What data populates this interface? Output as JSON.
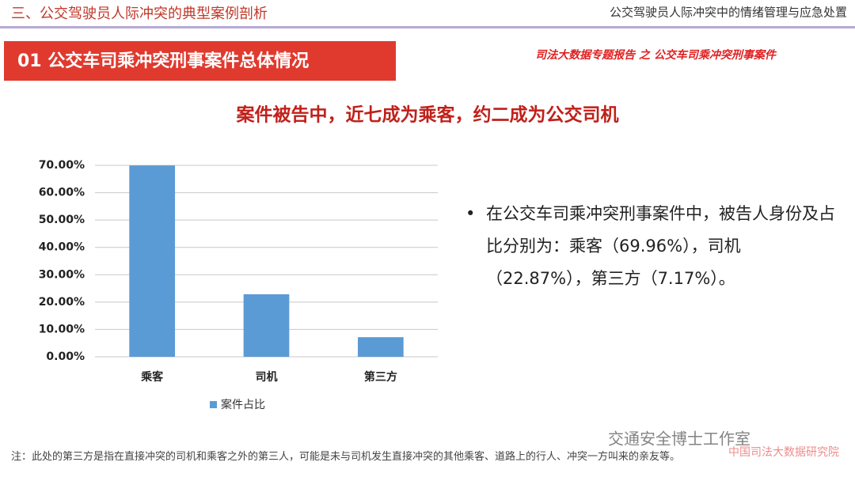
{
  "header": {
    "left": "三、公交驾驶员人际冲突的典型案例剖析",
    "right": "公交驾驶员人际冲突中的情绪管理与应急处置"
  },
  "banner": "01  公交车司乘冲突刑事案件总体情况",
  "source": "司法大数据专题报告 之 公交车司乘冲突刑事案件",
  "bullet": "在公交车司乘冲突刑事案件中，被告人身份及占比分别为：乘客（69.96%），司机（22.87%），第三方（7.17%）。",
  "footnote": "注：此处的第三方是指在直接冲突的司机和乘客之外的第三人，可能是未与司机发生直接冲突的其他乘客、道路上的行人、冲突一方叫来的亲友等。",
  "watermark": [
    "交通安全博士工作室",
    "中国司法大数据研究院"
  ],
  "chart_data": {
    "type": "bar",
    "title": "案件被告中，近七成为乘客，约二成为公交司机",
    "categories": [
      "乘客",
      "司机",
      "第三方"
    ],
    "series": [
      {
        "name": "案件占比",
        "color": "#5b9bd5",
        "values": [
          69.96,
          22.87,
          7.17
        ]
      }
    ],
    "ylim": [
      0,
      70
    ],
    "yticks": [
      {
        "value": 0,
        "label": "0.00%"
      },
      {
        "value": 10,
        "label": "10.00%"
      },
      {
        "value": 20,
        "label": "20.00%"
      },
      {
        "value": 30,
        "label": "30.00%"
      },
      {
        "value": 40,
        "label": "40.00%"
      },
      {
        "value": 50,
        "label": "50.00%"
      },
      {
        "value": 60,
        "label": "60.00%"
      },
      {
        "value": 70,
        "label": "70.00%"
      }
    ],
    "grid": true,
    "legend": "bottom"
  }
}
